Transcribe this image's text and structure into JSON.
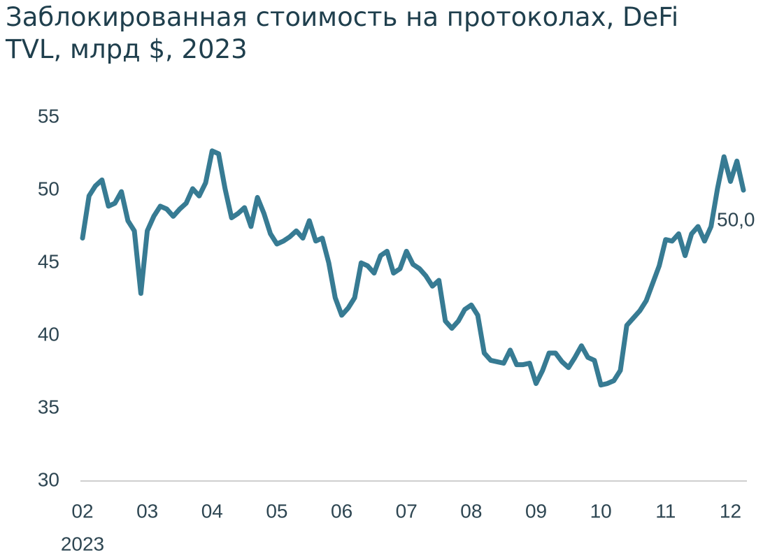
{
  "chart_data": {
    "type": "line",
    "title": "Заблокированная стоимость на протоколах, DeFi TVL, млрд $, 2023",
    "categories": [
      "02",
      null,
      null,
      null,
      null,
      null,
      null,
      null,
      null,
      null,
      "03",
      null,
      null,
      null,
      null,
      null,
      null,
      null,
      null,
      null,
      "04",
      null,
      null,
      null,
      null,
      null,
      null,
      null,
      null,
      null,
      "05",
      null,
      null,
      null,
      null,
      null,
      null,
      null,
      null,
      null,
      "06",
      null,
      null,
      null,
      null,
      null,
      null,
      null,
      null,
      null,
      "07",
      null,
      null,
      null,
      null,
      null,
      null,
      null,
      null,
      null,
      "08",
      null,
      null,
      null,
      null,
      null,
      null,
      null,
      null,
      null,
      "09",
      null,
      null,
      null,
      null,
      null,
      null,
      null,
      null,
      null,
      "10",
      null,
      null,
      null,
      null,
      null,
      null,
      null,
      null,
      null,
      "11",
      null,
      null,
      null,
      null,
      null,
      null,
      null,
      null,
      null,
      "12",
      null,
      null
    ],
    "x_sublabel": "2023",
    "values": [
      46.7,
      49.6,
      50.3,
      50.7,
      48.9,
      49.1,
      49.9,
      47.9,
      47.2,
      42.9,
      47.2,
      48.2,
      48.9,
      48.7,
      48.2,
      48.7,
      49.1,
      50.1,
      49.6,
      50.5,
      52.7,
      52.5,
      50.1,
      48.1,
      48.4,
      48.8,
      47.5,
      49.5,
      48.4,
      47.0,
      46.3,
      46.5,
      46.8,
      47.2,
      46.7,
      47.9,
      46.5,
      46.7,
      45.0,
      42.6,
      41.4,
      41.9,
      42.6,
      45.0,
      44.8,
      44.3,
      45.5,
      45.8,
      44.3,
      44.6,
      45.8,
      44.9,
      44.6,
      44.1,
      43.4,
      43.8,
      41.0,
      40.5,
      41.0,
      41.8,
      42.1,
      41.4,
      38.8,
      38.3,
      38.2,
      38.1,
      39.0,
      38.0,
      38.0,
      38.1,
      36.7,
      37.6,
      38.8,
      38.8,
      38.2,
      37.8,
      38.5,
      39.3,
      38.5,
      38.3,
      36.6,
      36.7,
      36.9,
      37.6,
      40.7,
      41.2,
      41.7,
      42.4,
      43.6,
      44.8,
      46.6,
      46.5,
      47.0,
      45.5,
      47.0,
      47.5,
      46.5,
      47.5,
      50.1,
      52.3,
      50.6,
      52.0,
      50.0
    ],
    "last_value_label": "50,0",
    "color": "#377b93",
    "ylim": [
      30,
      55
    ],
    "yticks": [
      30,
      35,
      40,
      45,
      50,
      55
    ],
    "grid": false
  }
}
